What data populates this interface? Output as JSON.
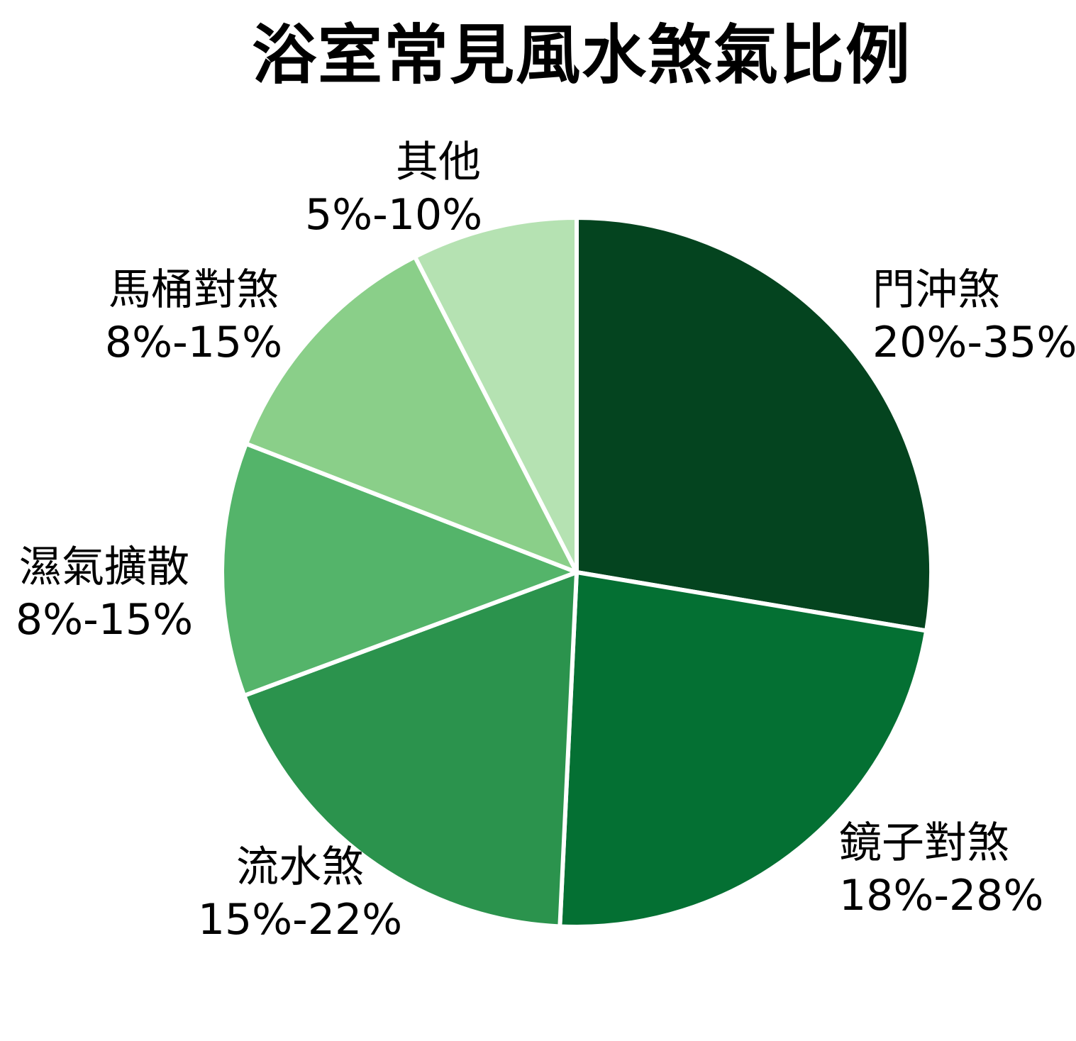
{
  "chart_data": {
    "type": "pie",
    "title": "浴室常見風水煞氣比例",
    "legend": "none",
    "label_position": "outside",
    "start_angle": "12-oclock",
    "direction": "clockwise",
    "separator_color": "#ffffff",
    "background_color": "#ffffff",
    "slices": [
      {
        "label": "門沖煞",
        "range": "20%-35%",
        "value_mid": 27.5,
        "color": "#04441f"
      },
      {
        "label": "鏡子對煞",
        "range": "18%-28%",
        "value_mid": 23.0,
        "color": "#047033"
      },
      {
        "label": "流水煞",
        "range": "15%-22%",
        "value_mid": 18.5,
        "color": "#2b934d"
      },
      {
        "label": "濕氣擴散",
        "range": "8%-15%",
        "value_mid": 11.5,
        "color": "#54b46a"
      },
      {
        "label": "馬桶對煞",
        "range": "8%-15%",
        "value_mid": 11.5,
        "color": "#8acf89"
      },
      {
        "label": "其他",
        "range": "5%-10%",
        "value_mid": 7.5,
        "color": "#b5e2b2"
      }
    ]
  }
}
